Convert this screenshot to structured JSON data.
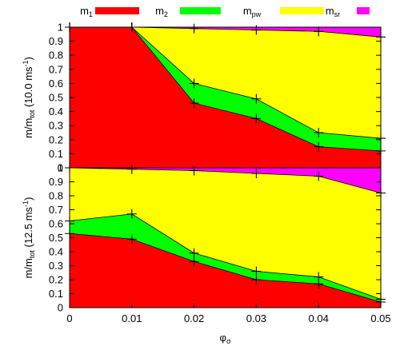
{
  "chart_data": {
    "type": "area",
    "stacked": true,
    "legend": {
      "placement": "top",
      "entries": [
        {
          "key": "m1",
          "base": "m",
          "sub": "1",
          "color": "#ff0000"
        },
        {
          "key": "m2",
          "base": "m",
          "sub": "2",
          "color": "#00ff00"
        },
        {
          "key": "mpw",
          "base": "m",
          "sub": "pw",
          "color": "#ffff00"
        },
        {
          "key": "msr",
          "base": "m",
          "sub": "sr",
          "color": "#ff00ff"
        }
      ]
    },
    "xlabel": {
      "base": "φ",
      "sub": "σ"
    },
    "xlim": [
      0,
      0.05
    ],
    "xticks": [
      "0",
      "0.01",
      "0.02",
      "0.03",
      "0.04",
      "0.05"
    ],
    "x": [
      0,
      0.01,
      0.02,
      0.03,
      0.04,
      0.05
    ],
    "panels": [
      {
        "ylabel": {
          "pre": "m/m",
          "sub": "tot",
          "mid": " (10.0 ms",
          "sup": "-1",
          "post": ")"
        },
        "ylim": [
          0,
          1
        ],
        "yticks": [
          "0",
          "0.1",
          "0.2",
          "0.3",
          "0.4",
          "0.5",
          "0.6",
          "0.7",
          "0.8",
          "0.9",
          "1"
        ],
        "cumulative": {
          "m1": [
            1.0,
            1.0,
            0.46,
            0.35,
            0.15,
            0.12
          ],
          "m1_m2": [
            1.0,
            1.0,
            0.6,
            0.49,
            0.25,
            0.21
          ],
          "m1_m2_mpw": [
            1.0,
            1.0,
            0.99,
            0.98,
            0.97,
            0.93
          ]
        }
      },
      {
        "ylabel": {
          "pre": "m/m",
          "sub": "tot",
          "mid": " (12.5 ms",
          "sup": "-1",
          "post": ")"
        },
        "ylim": [
          0,
          1
        ],
        "yticks": [
          "0",
          "0.1",
          "0.2",
          "0.3",
          "0.4",
          "0.5",
          "0.6",
          "0.7",
          "0.8",
          "0.9",
          "1"
        ],
        "cumulative": {
          "m1": [
            0.53,
            0.49,
            0.33,
            0.2,
            0.17,
            0.04
          ],
          "m1_m2": [
            0.62,
            0.67,
            0.39,
            0.26,
            0.22,
            0.06
          ],
          "m1_m2_mpw": [
            1.0,
            0.99,
            0.98,
            0.96,
            0.94,
            0.82
          ]
        }
      }
    ]
  }
}
